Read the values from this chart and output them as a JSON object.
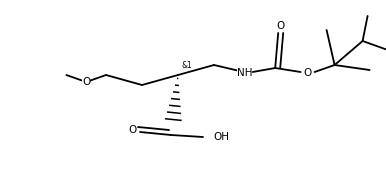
{
  "bg_color": "#ffffff",
  "line_color": "#000000",
  "lw": 1.3,
  "fs": 7.5,
  "figsize": [
    3.86,
    1.7
  ],
  "dpi": 100,
  "xlim": [
    0,
    386
  ],
  "ylim": [
    0,
    170
  ]
}
